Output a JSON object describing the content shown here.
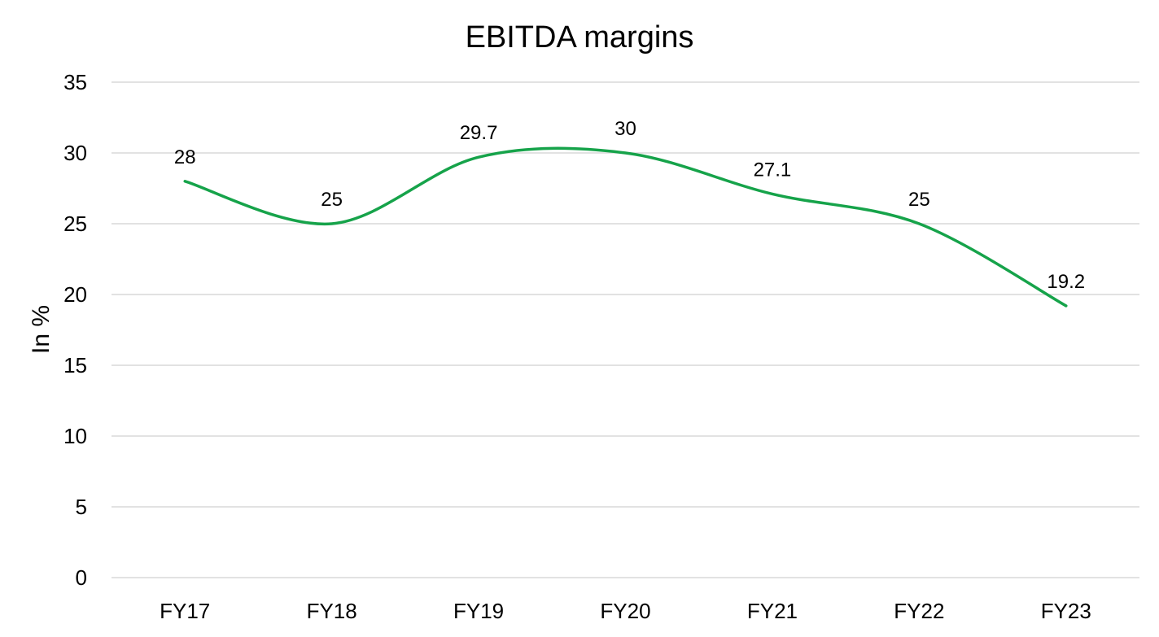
{
  "chart_data": {
    "type": "line",
    "title": "EBITDA margins",
    "xlabel": "",
    "ylabel": "In %",
    "categories": [
      "FY17",
      "FY18",
      "FY19",
      "FY20",
      "FY21",
      "FY22",
      "FY23"
    ],
    "series": [
      {
        "values": [
          28,
          25,
          29.7,
          30,
          27.1,
          25,
          19.2
        ],
        "labels": [
          "28",
          "25",
          "29.7",
          "30",
          "27.1",
          "25",
          "19.2"
        ],
        "color": "#16a34a"
      }
    ],
    "ylim": [
      0,
      35
    ],
    "yticks": [
      0,
      5,
      10,
      15,
      20,
      25,
      30,
      35
    ],
    "smooth": true,
    "grid": true,
    "legend": "none"
  }
}
